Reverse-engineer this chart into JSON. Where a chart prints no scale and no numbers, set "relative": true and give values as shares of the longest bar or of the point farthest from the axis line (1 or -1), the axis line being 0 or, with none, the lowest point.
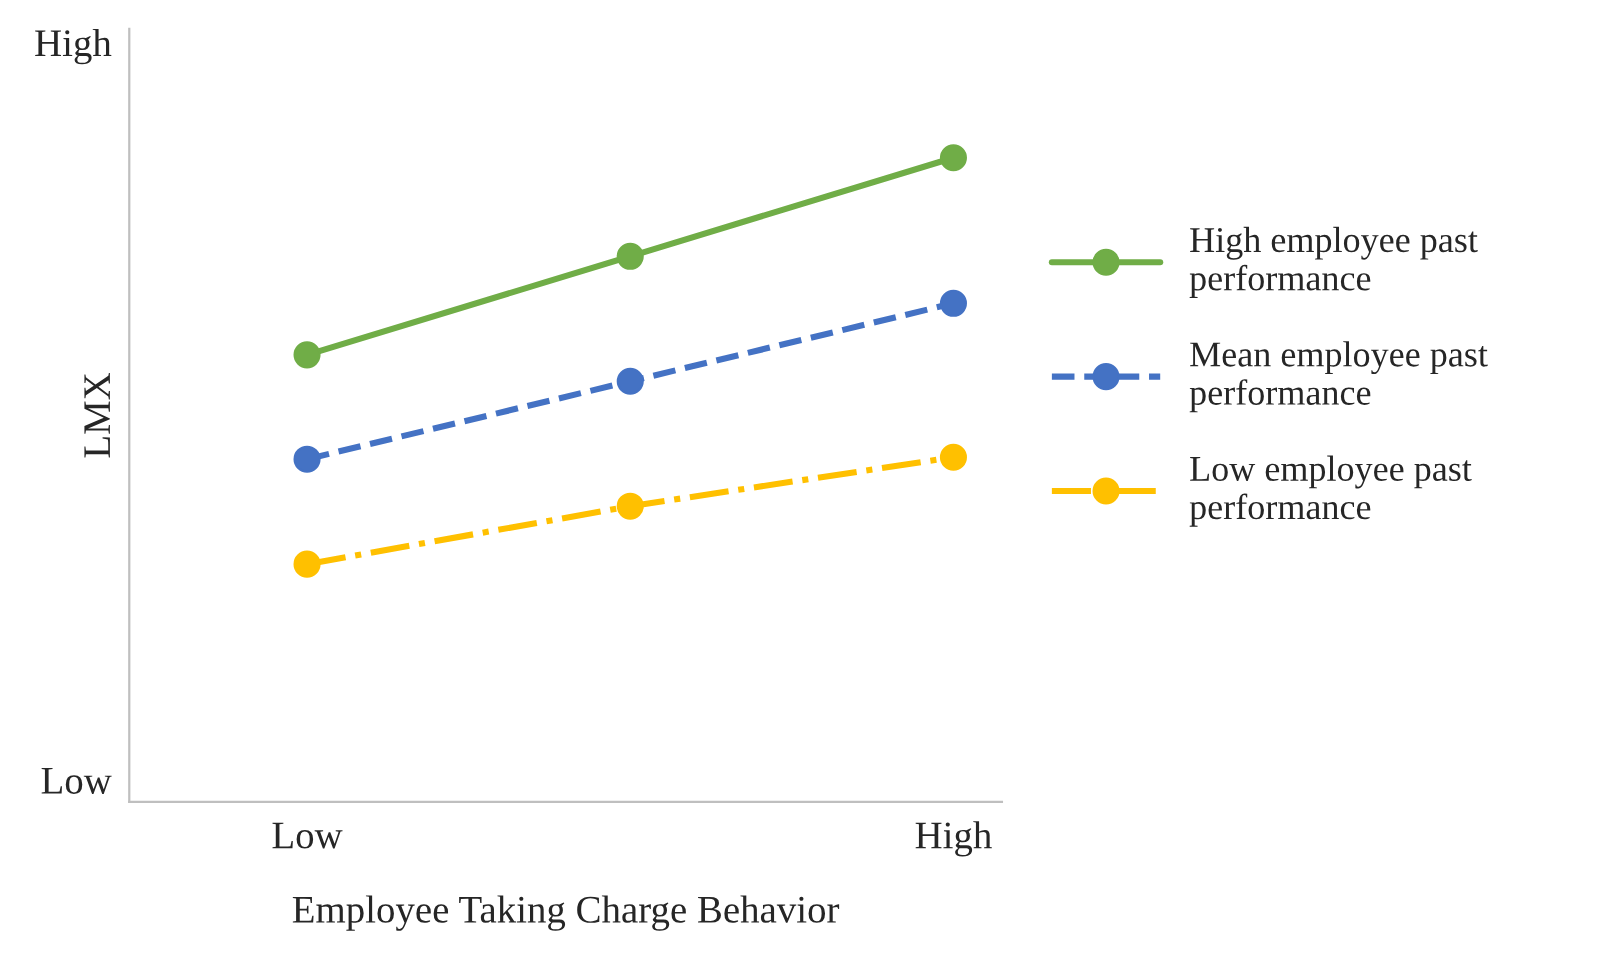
{
  "chart_data": {
    "type": "line",
    "relative": true,
    "xlabel": "Employee Taking Charge Behavior",
    "ylabel": "LMX",
    "categories": [
      "Low",
      null,
      "High"
    ],
    "series": [
      {
        "name": "High employee past performance",
        "color": "#70ad47",
        "line_style": "solid",
        "values": [
          0.694,
          0.847,
          1
        ]
      },
      {
        "name": "Mean employee past performance",
        "color": "#4472c4",
        "line_style": "dashed",
        "values": [
          0.532,
          0.653,
          0.774
        ]
      },
      {
        "name": "Low employee past performance",
        "color": "#ffc000",
        "line_style": "dashdot",
        "values": [
          0.369,
          0.459,
          0.535
        ]
      }
    ],
    "annotations": [
      "High",
      "Low"
    ],
    "marker": "circle",
    "legend": "right",
    "grid": false
  }
}
